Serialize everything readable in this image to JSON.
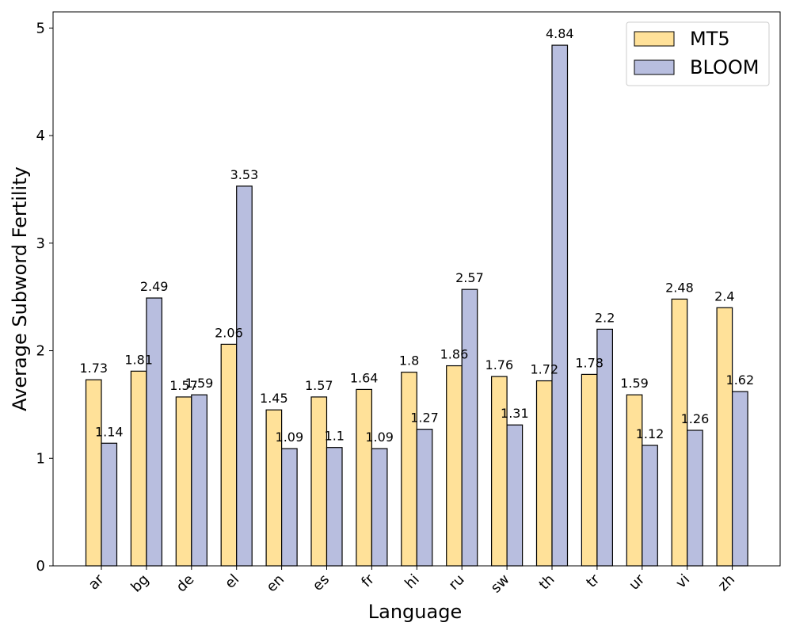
{
  "chart_data": {
    "type": "bar",
    "xlabel": "Language",
    "ylabel": "Average Subword Fertility",
    "ylim": [
      0,
      5.15
    ],
    "yticks": [
      0,
      1,
      2,
      3,
      4,
      5
    ],
    "grid": false,
    "legend_position": "top-right",
    "categories": [
      "ar",
      "bg",
      "de",
      "el",
      "en",
      "es",
      "fr",
      "hi",
      "ru",
      "sw",
      "th",
      "tr",
      "ur",
      "vi",
      "zh"
    ],
    "series": [
      {
        "name": "MT5",
        "color": "#ffe199",
        "values": [
          1.73,
          1.81,
          1.57,
          2.06,
          1.45,
          1.57,
          1.64,
          1.8,
          1.86,
          1.76,
          1.72,
          1.78,
          1.59,
          2.48,
          2.4
        ],
        "labels": [
          "1.73",
          "1.81",
          "1.57",
          "2.06",
          "1.45",
          "1.57",
          "1.64",
          "1.8",
          "1.86",
          "1.76",
          "1.72",
          "1.78",
          "1.59",
          "2.48",
          "2.4"
        ]
      },
      {
        "name": "BLOOM",
        "color": "#b8bedf",
        "values": [
          1.14,
          2.49,
          1.59,
          3.53,
          1.09,
          1.1,
          1.09,
          1.27,
          2.57,
          1.31,
          4.84,
          2.2,
          1.12,
          1.26,
          1.62
        ],
        "labels": [
          "1.14",
          "2.49",
          "1.59",
          "3.53",
          "1.09",
          "1.1",
          "1.09",
          "1.27",
          "2.57",
          "1.31",
          "4.84",
          "2.2",
          "1.12",
          "1.26",
          "1.62"
        ]
      }
    ]
  }
}
